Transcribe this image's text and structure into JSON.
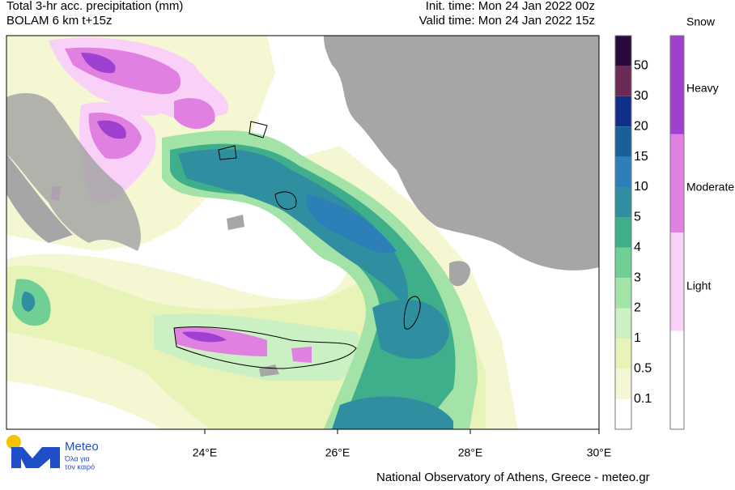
{
  "header": {
    "title": "Total 3-hr acc. precipitation (mm)",
    "model": "BOLAM 6 km t+15z",
    "init_time": "Init. time: Mon 24 Jan 2022 00z",
    "valid_time": "Valid time: Mon 24 Jan 2022 15z"
  },
  "map": {
    "longitude_labels": [
      "24°E",
      "26°E",
      "28°E",
      "30°E"
    ]
  },
  "precip_scale": {
    "labels": [
      "0.1",
      "0.5",
      "1",
      "2",
      "3",
      "4",
      "5",
      "10",
      "15",
      "20",
      "30",
      "50"
    ]
  },
  "snow_legend": {
    "title": "Snow",
    "labels": [
      "Heavy",
      "Moderate",
      "Light"
    ]
  },
  "logo": {
    "name": "Meteo",
    "tagline_1": "Όλα για",
    "tagline_2": "τον καιρό"
  },
  "footer": "National Observatory of Athens, Greece - meteo.gr"
}
